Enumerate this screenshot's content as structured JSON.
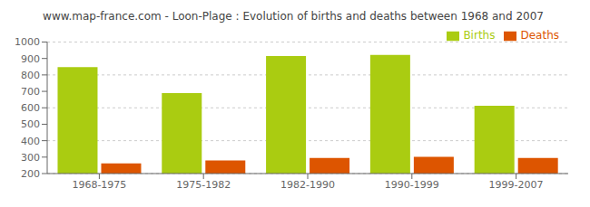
{
  "chart_data": {
    "type": "bar",
    "title": "www.map-france.com - Loon-Plage : Evolution of births and deaths between 1968 and 2007",
    "categories": [
      "1968-1975",
      "1975-1982",
      "1982-1990",
      "1990-1999",
      "1999-2007"
    ],
    "series": [
      {
        "name": "Births",
        "color": "#aacc11",
        "values": [
          848,
          690,
          915,
          922,
          613
        ]
      },
      {
        "name": "Deaths",
        "color": "#dd5500",
        "values": [
          262,
          280,
          295,
          302,
          295
        ]
      }
    ],
    "ylim": [
      200,
      1000
    ],
    "yticks": [
      200,
      300,
      400,
      500,
      600,
      700,
      800,
      900,
      1000
    ],
    "grid": true,
    "legend": "upper right"
  }
}
